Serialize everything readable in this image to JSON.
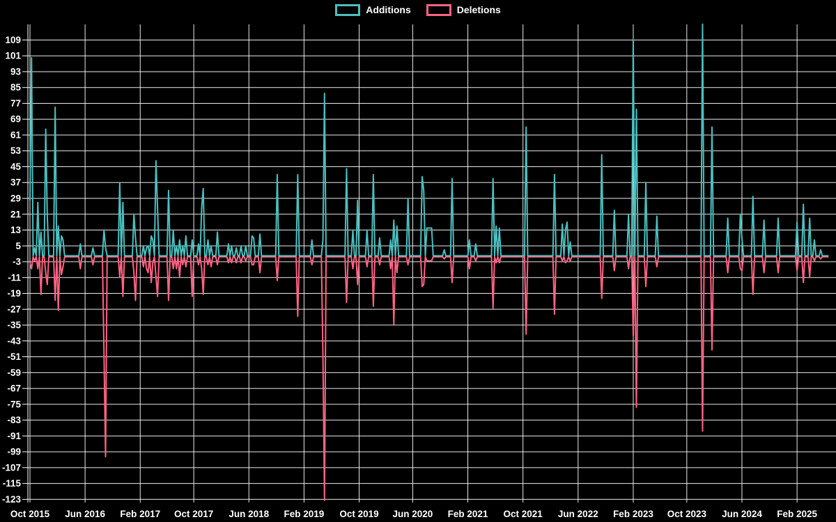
{
  "legend": [
    {
      "label": "Additions",
      "color": "#4BC0C0"
    },
    {
      "label": "Deletions",
      "color": "#FF6384"
    }
  ],
  "colors": {
    "background": "#000000",
    "grid": "#FFFFFF",
    "tick_text": "#FFFFFF",
    "additions": "#4BC0C0",
    "deletions": "#FF6384"
  },
  "chart_data": {
    "type": "line",
    "title": "",
    "description": "Weekly code additions (positive, teal) and deletions (negative, pink) from Oct 2015 to Apr 2025",
    "x_axis": {
      "tick_labels": [
        "Oct 2015",
        "Jun 2016",
        "Feb 2017",
        "Oct 2017",
        "Jun 2018",
        "Feb 2019",
        "Oct 2019",
        "Jun 2020",
        "Feb 2021",
        "Oct 2021",
        "Jun 2022",
        "Feb 2023",
        "Oct 2023",
        "Jun 2024",
        "Feb 2025"
      ],
      "tick_weeks": [
        0,
        35,
        70,
        104,
        139,
        174,
        209,
        243,
        278,
        313,
        348,
        383,
        417,
        452,
        487
      ],
      "unit": "week"
    },
    "y_axis": {
      "min": -123,
      "max": 109,
      "step": 8,
      "ticks": [
        109,
        101,
        93,
        85,
        77,
        69,
        61,
        53,
        45,
        37,
        29,
        21,
        13,
        5,
        -3,
        -11,
        -19,
        -27,
        -35,
        -43,
        -51,
        -59,
        -67,
        -75,
        -83,
        -91,
        -99,
        -107,
        -115,
        -123
      ]
    },
    "weeks_total": 508,
    "baseline_value": 0,
    "series_names": [
      "Additions",
      "Deletions"
    ],
    "spikes_format": [
      "week_index",
      "additions",
      "deletions"
    ],
    "spikes": [
      [
        0,
        28,
        -3
      ],
      [
        1,
        100,
        -6
      ],
      [
        3,
        4,
        -2
      ],
      [
        5,
        27,
        -6
      ],
      [
        7,
        12,
        -19
      ],
      [
        10,
        64,
        -8
      ],
      [
        11,
        20,
        -14
      ],
      [
        16,
        75,
        -22
      ],
      [
        18,
        15,
        -27
      ],
      [
        20,
        10,
        -9
      ],
      [
        21,
        8,
        -5
      ],
      [
        32,
        6,
        -6
      ],
      [
        40,
        4,
        -4
      ],
      [
        47,
        13,
        -49
      ],
      [
        48,
        4,
        -101
      ],
      [
        57,
        37,
        -10
      ],
      [
        59,
        27,
        -20
      ],
      [
        66,
        21,
        -8
      ],
      [
        67,
        9,
        -22
      ],
      [
        72,
        5,
        -5
      ],
      [
        74,
        4,
        -6
      ],
      [
        75,
        5,
        -8
      ],
      [
        77,
        10,
        -13
      ],
      [
        78,
        8,
        -3
      ],
      [
        80,
        48,
        -10
      ],
      [
        81,
        24,
        -20
      ],
      [
        88,
        33,
        -22
      ],
      [
        91,
        13,
        -6
      ],
      [
        93,
        5,
        -6
      ],
      [
        95,
        8,
        -10
      ],
      [
        97,
        5,
        -4
      ],
      [
        99,
        10,
        -5
      ],
      [
        103,
        8,
        -20
      ],
      [
        107,
        6,
        -4
      ],
      [
        109,
        24,
        -6
      ],
      [
        110,
        34,
        -19
      ],
      [
        113,
        8,
        -4
      ],
      [
        115,
        5,
        -5
      ],
      [
        119,
        12,
        -4
      ],
      [
        126,
        6,
        -3
      ],
      [
        128,
        5,
        -3
      ],
      [
        131,
        4,
        -3
      ],
      [
        134,
        5,
        -3
      ],
      [
        137,
        5,
        -2
      ],
      [
        141,
        10,
        -4
      ],
      [
        142,
        9,
        -4
      ],
      [
        146,
        11,
        -8
      ],
      [
        157,
        41,
        -12
      ],
      [
        170,
        41,
        -30
      ],
      [
        179,
        8,
        -4
      ],
      [
        186,
        8,
        -50
      ],
      [
        187,
        82,
        -123
      ],
      [
        201,
        44,
        -23
      ],
      [
        205,
        13,
        -6
      ],
      [
        208,
        28,
        -14
      ],
      [
        214,
        13,
        -5
      ],
      [
        218,
        41,
        -25
      ],
      [
        222,
        9,
        -4
      ],
      [
        229,
        8,
        -6
      ],
      [
        231,
        18,
        -34
      ],
      [
        233,
        15,
        -8
      ],
      [
        240,
        29,
        -4
      ],
      [
        249,
        40,
        -15
      ],
      [
        250,
        33,
        -14
      ],
      [
        252,
        14,
        -2
      ],
      [
        253,
        14,
        -2
      ],
      [
        254,
        14,
        -2
      ],
      [
        255,
        14,
        -2
      ],
      [
        263,
        3,
        -1
      ],
      [
        268,
        39,
        -13
      ],
      [
        279,
        8,
        -6
      ],
      [
        283,
        6,
        -2
      ],
      [
        294,
        39,
        -26
      ],
      [
        296,
        15,
        -3
      ],
      [
        298,
        14,
        -3
      ],
      [
        315,
        65,
        -39
      ],
      [
        333,
        41,
        -29
      ],
      [
        338,
        16,
        -2
      ],
      [
        340,
        13,
        -3
      ],
      [
        341,
        17,
        -2
      ],
      [
        343,
        7,
        -2
      ],
      [
        363,
        51,
        -21
      ],
      [
        371,
        23,
        -7
      ],
      [
        380,
        21,
        -6
      ],
      [
        383,
        109,
        -40
      ],
      [
        385,
        74,
        -76
      ],
      [
        391,
        37,
        -15
      ],
      [
        398,
        20,
        -5
      ],
      [
        427,
        117,
        -88
      ],
      [
        433,
        65,
        -47
      ],
      [
        443,
        19,
        -8
      ],
      [
        451,
        21,
        -6
      ],
      [
        452,
        9,
        -7
      ],
      [
        459,
        30,
        -19
      ],
      [
        466,
        18,
        -8
      ],
      [
        475,
        19,
        -8
      ],
      [
        487,
        17,
        -7
      ],
      [
        491,
        26,
        -13
      ],
      [
        495,
        19,
        -10
      ],
      [
        498,
        8,
        -2
      ],
      [
        502,
        3,
        -1
      ]
    ]
  }
}
